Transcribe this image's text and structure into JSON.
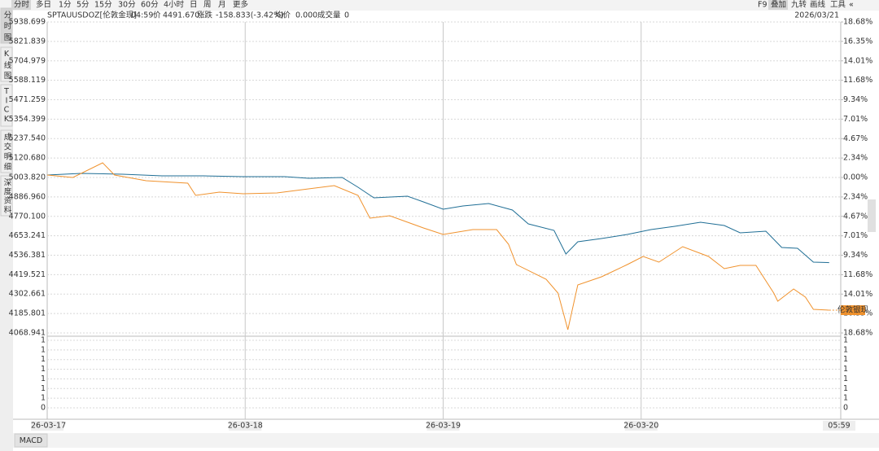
{
  "sidebar_tabs": [
    "分时图",
    "K线图",
    "TICK",
    "成交明细",
    "深度资料"
  ],
  "toolbar": {
    "periods": [
      "分时",
      "多日",
      "1分",
      "5分",
      "15分",
      "30分",
      "60分",
      "4小时",
      "日",
      "周",
      "月",
      "更多"
    ],
    "tools": [
      "F9",
      "叠加",
      "九转",
      "画线",
      "工具"
    ]
  },
  "quote": {
    "symbol": "SPTAUUSDOZ[伦敦金现]",
    "time": "04:59",
    "price_label": "价",
    "price": "4491.670",
    "change_label": "涨跌",
    "change": "-158.833(-3.42%)",
    "avg_label": "均价",
    "avg": "0.000",
    "volume_label": "成交量",
    "volume": "0",
    "date": "2026/03/21"
  },
  "chart_data": {
    "type": "line",
    "xlim": [
      0,
      4
    ],
    "xticks": [
      {
        "value": 0,
        "label": "26-03-17"
      },
      {
        "value": 1,
        "label": "26-03-18"
      },
      {
        "value": 2,
        "label": "26-03-19"
      },
      {
        "value": 3,
        "label": "26-03-20"
      },
      {
        "value": 4,
        "label": "05:59"
      }
    ],
    "ylim": [
      4068.941,
      5938.699
    ],
    "yticks": [
      5938.699,
      5821.839,
      5704.979,
      5588.119,
      5471.259,
      5354.399,
      {
        "value": 5237.54,
        "label": "5237.540"
      },
      {
        "value": 5120.68,
        "label": "5120.680"
      },
      {
        "value": 5003.82,
        "label": "5003.820"
      },
      {
        "value": 4886.96,
        "label": "4886.960"
      },
      {
        "value": 4770.1,
        "label": "4770.100"
      },
      4653.241,
      4536.381,
      4419.521,
      4302.661,
      4185.801,
      4068.941
    ],
    "y2lim": [
      -18.68,
      18.68
    ],
    "y2ticks": [
      {
        "value": 18.68,
        "label": "18.68%"
      },
      {
        "value": 16.35,
        "label": "16.35%"
      },
      {
        "value": 14.01,
        "label": "14.01%"
      },
      {
        "value": 11.68,
        "label": "11.68%"
      },
      {
        "value": 9.34,
        "label": "9.34%"
      },
      {
        "value": 7.01,
        "label": "7.01%"
      },
      {
        "value": 4.67,
        "label": "4.67%"
      },
      {
        "value": 2.34,
        "label": "2.34%"
      },
      {
        "value": 0,
        "label": "0.00%"
      },
      {
        "value": -2.34,
        "label": "2.34%"
      },
      {
        "value": -4.67,
        "label": "4.67%"
      },
      {
        "value": -7.01,
        "label": "7.01%"
      },
      {
        "value": -9.34,
        "label": "9.34%"
      },
      {
        "value": -11.68,
        "label": "11.68%"
      },
      {
        "value": -14.01,
        "label": "14.01%"
      },
      {
        "value": -16.35,
        "label": "16.35%"
      },
      {
        "value": -18.68,
        "label": "18.68%"
      }
    ],
    "grid": true,
    "series": [
      {
        "color": "#1f6e95",
        "x": [
          0,
          0.17,
          0.38,
          0.58,
          0.79,
          0.99,
          1.2,
          1.32,
          1.49,
          1.57,
          1.65,
          1.82,
          1.9,
          2.0,
          2.1,
          2.23,
          2.35,
          2.43,
          2.56,
          2.62,
          2.68,
          2.8,
          2.93,
          3.05,
          3.17,
          3.3,
          3.42,
          3.5,
          3.63,
          3.71,
          3.79,
          3.87,
          3.95
        ],
        "values": [
          5018.5,
          5028.3,
          5023.4,
          5013.6,
          5013.6,
          5008.7,
          5008.7,
          4998.9,
          5003.8,
          4945.1,
          4881.5,
          4891.3,
          4857.0,
          4812.9,
          4832.5,
          4847.2,
          4808.0,
          4724.8,
          4685.7,
          4543.7,
          4617.2,
          4636.7,
          4661.2,
          4690.6,
          4710.2,
          4734.6,
          4715.0,
          4671.0,
          4680.8,
          4582.9,
          4578.0,
          4494.8,
          4491.7
        ]
      },
      {
        "name": "伦敦银现",
        "color": "#f0922d",
        "x": [
          0,
          0.13,
          0.28,
          0.34,
          0.5,
          0.71,
          0.75,
          0.87,
          0.99,
          1.16,
          1.32,
          1.45,
          1.57,
          1.63,
          1.73,
          1.9,
          2.0,
          2.15,
          2.27,
          2.33,
          2.37,
          2.52,
          2.58,
          2.63,
          2.68,
          2.8,
          2.93,
          3.01,
          3.09,
          3.21,
          3.34,
          3.42,
          3.5,
          3.58,
          3.67,
          3.69,
          3.77,
          3.83,
          3.87,
          3.95
        ],
        "values": [
          5018.5,
          5003.8,
          5091.9,
          5018.5,
          4984.3,
          4969.6,
          4896.2,
          4915.7,
          4905.9,
          4910.8,
          4935.3,
          4954.9,
          4896.2,
          4759.1,
          4773.8,
          4700.4,
          4661.2,
          4690.6,
          4690.6,
          4602.5,
          4480.1,
          4392.0,
          4308.8,
          4088.5,
          4357.7,
          4406.7,
          4480.1,
          4529.1,
          4494.8,
          4587.8,
          4529.1,
          4455.6,
          4475.2,
          4475.2,
          4308.8,
          4259.9,
          4333.3,
          4284.3,
          4210.9,
          4206.0
        ]
      }
    ],
    "volume_pane": {
      "ylim": [
        0,
        7
      ],
      "yticks": [
        {
          "value": 7,
          "label": "1"
        },
        {
          "value": 6,
          "label": "1"
        },
        {
          "value": 5,
          "label": "1"
        },
        {
          "value": 4,
          "label": "1"
        },
        {
          "value": 3,
          "label": "1"
        },
        {
          "value": 2,
          "label": "1"
        },
        1,
        0
      ]
    },
    "indicator_tab": "MACD"
  }
}
